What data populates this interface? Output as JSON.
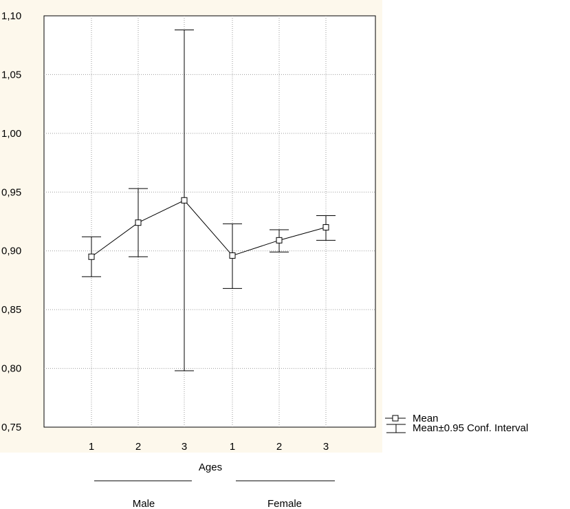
{
  "chart_data": {
    "type": "line",
    "y_ticks": [
      "1,10",
      "1,05",
      "1,00",
      "0,95",
      "0,90",
      "0,85",
      "0,80",
      "0,75"
    ],
    "ylim": [
      0.75,
      1.1
    ],
    "grid": true,
    "x_categories": [
      "1",
      "2",
      "3",
      "1",
      "2",
      "3"
    ],
    "xlabel": "Ages",
    "groups": [
      {
        "label": "Male",
        "categories": [
          "1",
          "2",
          "3"
        ]
      },
      {
        "label": "Female",
        "categories": [
          "1",
          "2",
          "3"
        ]
      }
    ],
    "series": [
      {
        "name": "Mean",
        "values": [
          0.895,
          0.924,
          0.943,
          0.896,
          0.909,
          0.92
        ],
        "ci_low": [
          0.878,
          0.895,
          0.798,
          0.868,
          0.899,
          0.909
        ],
        "ci_high": [
          0.912,
          0.953,
          1.088,
          0.923,
          0.918,
          0.93
        ]
      }
    ],
    "legend": {
      "position": "bottom-right",
      "items": [
        "Mean",
        "Mean±0.95 Conf. Interval"
      ]
    },
    "colors": {
      "page_bg": "#fdf8ec",
      "plot_bg": "#ffffff",
      "line": "#000000"
    }
  }
}
